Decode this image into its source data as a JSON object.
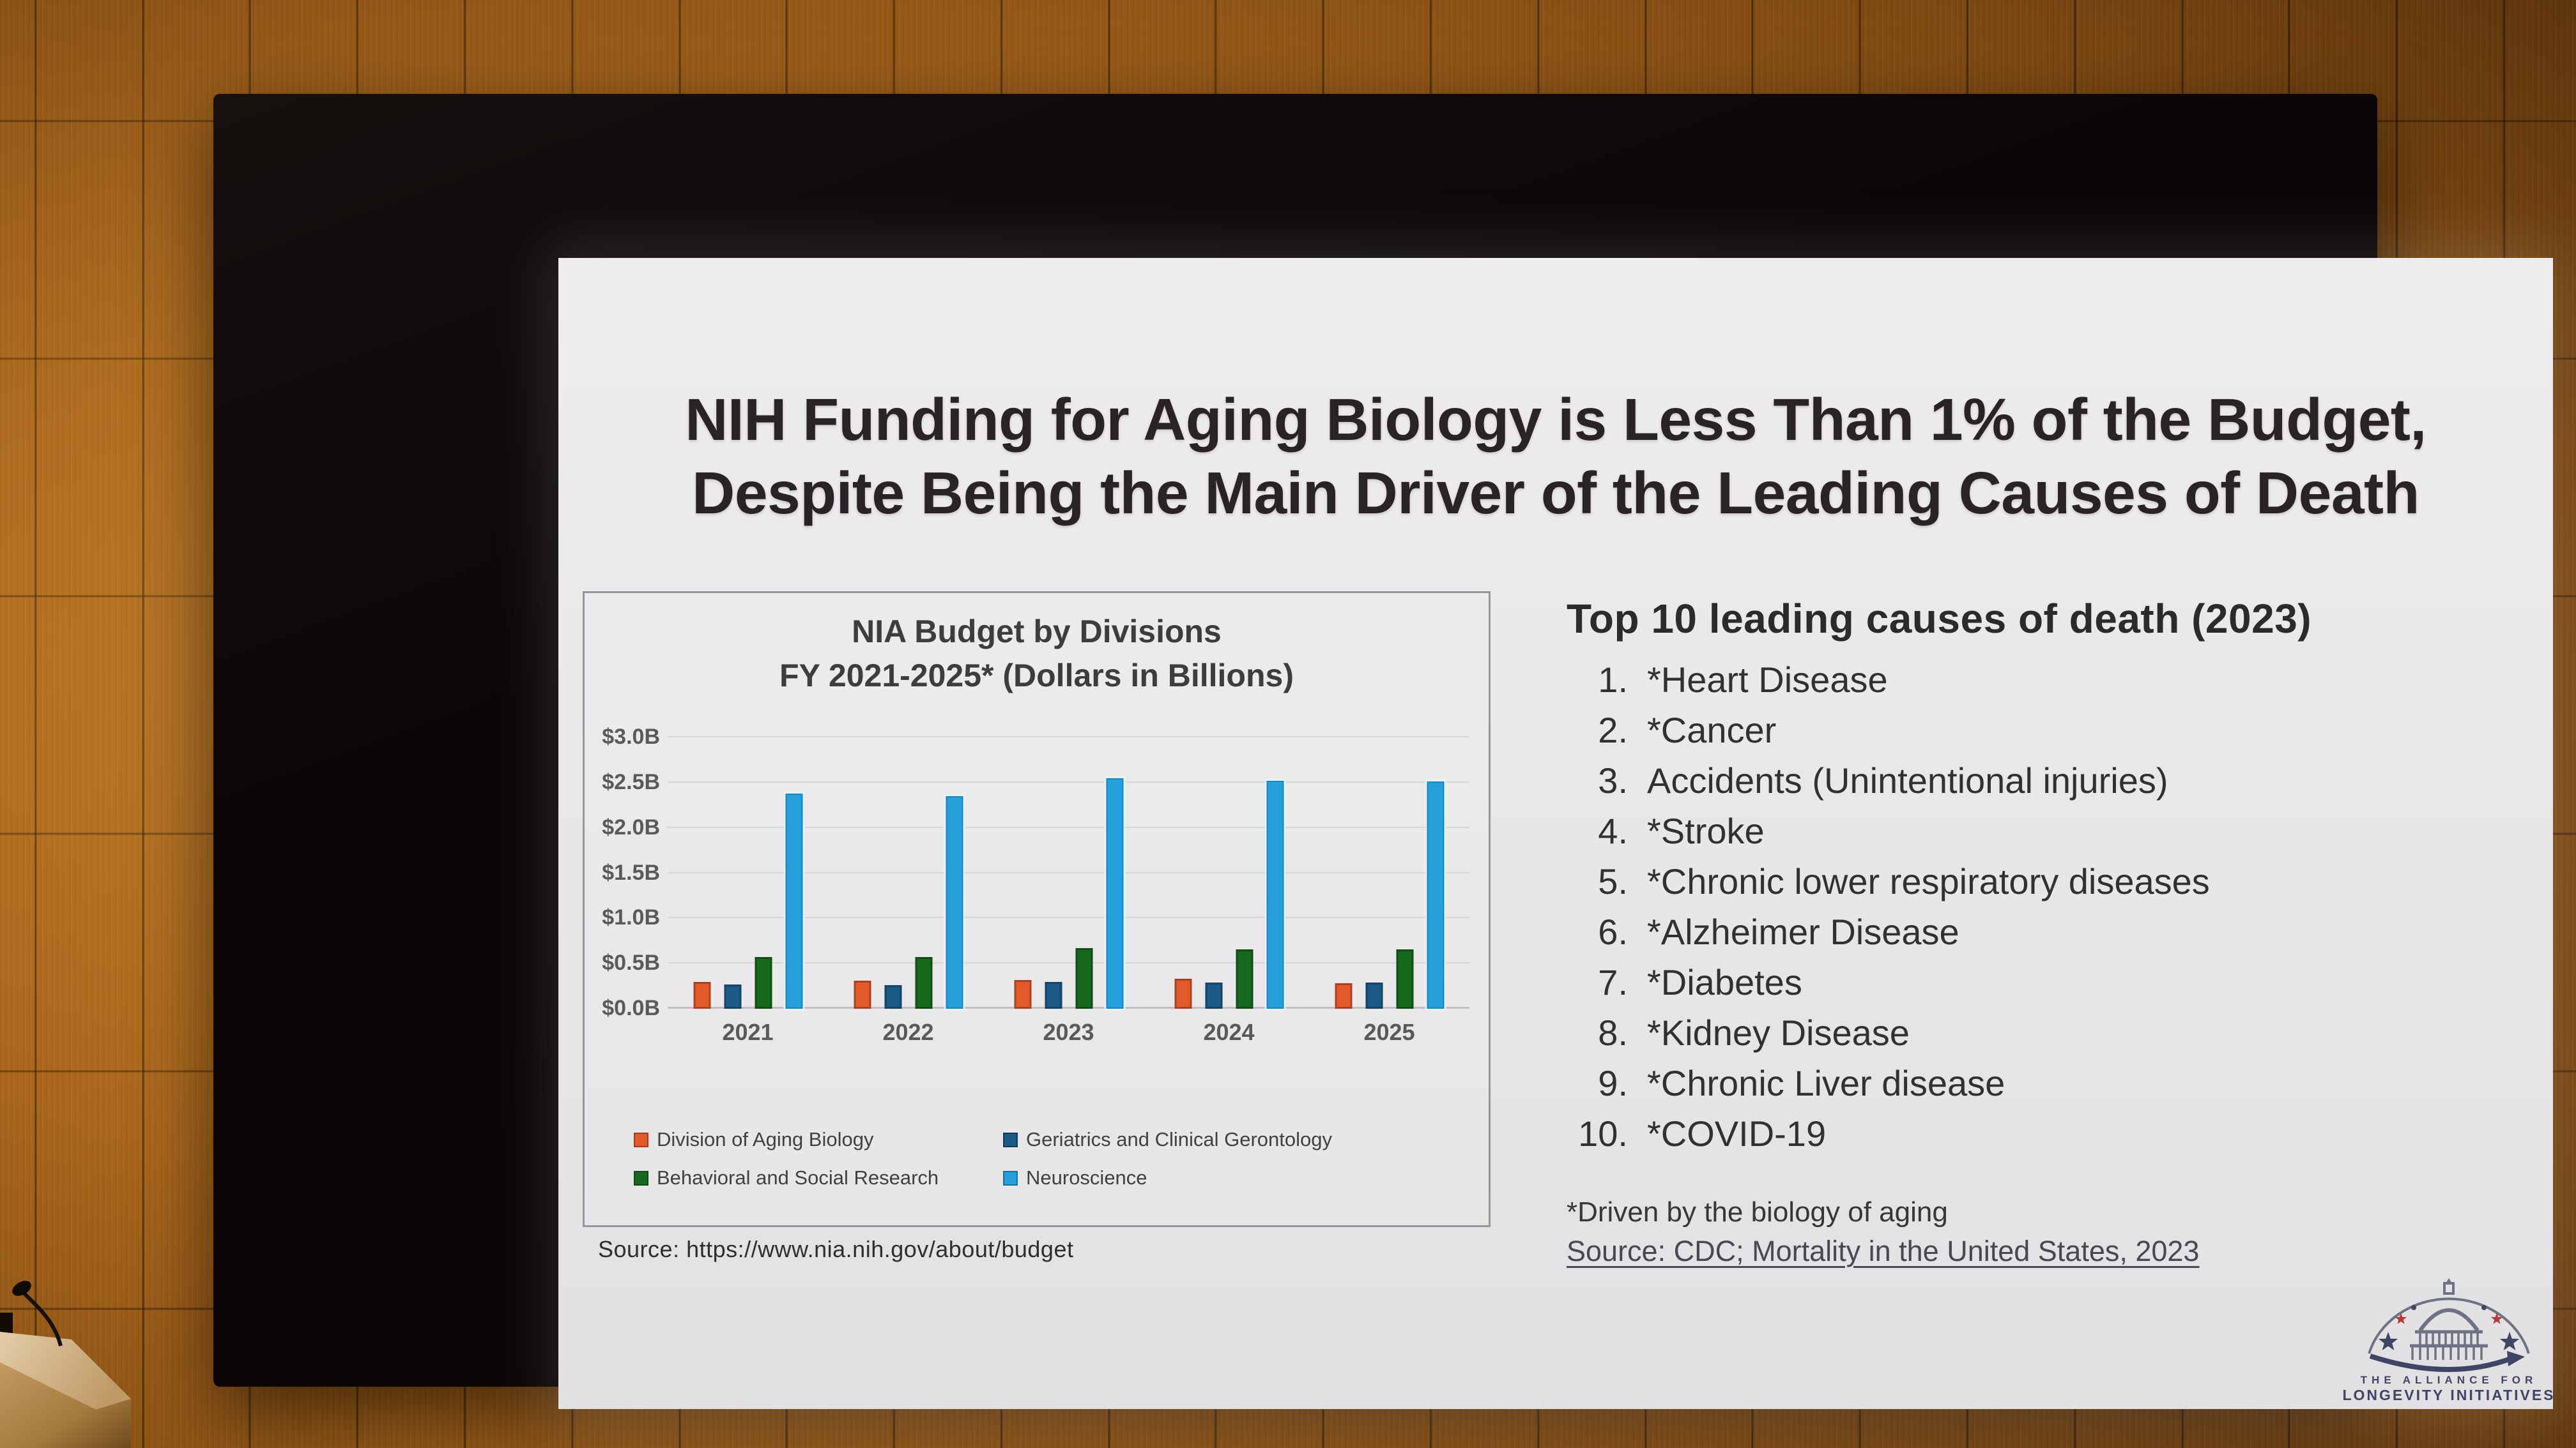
{
  "slide": {
    "title_lines": [
      "NIH Funding for Aging Biology is Less Than 1% of the Budget,",
      "Despite Being the Main Driver of the Leading Causes of Death"
    ],
    "chart_source": "Source: https://www.nia.nih.gov/about/budget",
    "top10": {
      "heading": "Top 10 leading causes of death (2023)",
      "items": [
        "*Heart Disease",
        "*Cancer",
        "Accidents (Unintentional injuries)",
        "*Stroke",
        "*Chronic lower respiratory diseases",
        "*Alzheimer Disease",
        "*Diabetes",
        "*Kidney Disease",
        "*Chronic Liver disease",
        "*COVID-19"
      ],
      "footnote": "*Driven by the biology of aging",
      "source_link": "Source: CDC; Mortality in the United States, 2023"
    },
    "logo": {
      "line1": "THE ALLIANCE FOR",
      "line2": "LONGEVITY INITIATIVES"
    }
  },
  "chart_data": {
    "type": "bar",
    "title": "NIA Budget by Divisions",
    "subtitle": "FY 2021-2025* (Dollars in Billions)",
    "categories": [
      "2021",
      "2022",
      "2023",
      "2024",
      "2025"
    ],
    "series": [
      {
        "name": "Division of Aging Biology",
        "color": "#e2592a",
        "values": [
          0.3,
          0.31,
          0.32,
          0.33,
          0.28
        ]
      },
      {
        "name": "Geriatrics and Clinical Gerontology",
        "color": "#1b5a86",
        "values": [
          0.27,
          0.26,
          0.3,
          0.29,
          0.29
        ]
      },
      {
        "name": "Behavioral and Social Research",
        "color": "#17691e",
        "values": [
          0.57,
          0.57,
          0.67,
          0.66,
          0.66
        ]
      },
      {
        "name": "Neuroscience",
        "color": "#25a0dc",
        "values": [
          2.38,
          2.35,
          2.55,
          2.52,
          2.51
        ]
      }
    ],
    "y_tick_labels": [
      "$0.0B",
      "$0.5B",
      "$1.0B",
      "$1.5B",
      "$2.0B",
      "$2.5B",
      "$3.0B"
    ],
    "ylim": [
      0,
      3.0
    ],
    "grid": true,
    "legend_position": "bottom"
  }
}
